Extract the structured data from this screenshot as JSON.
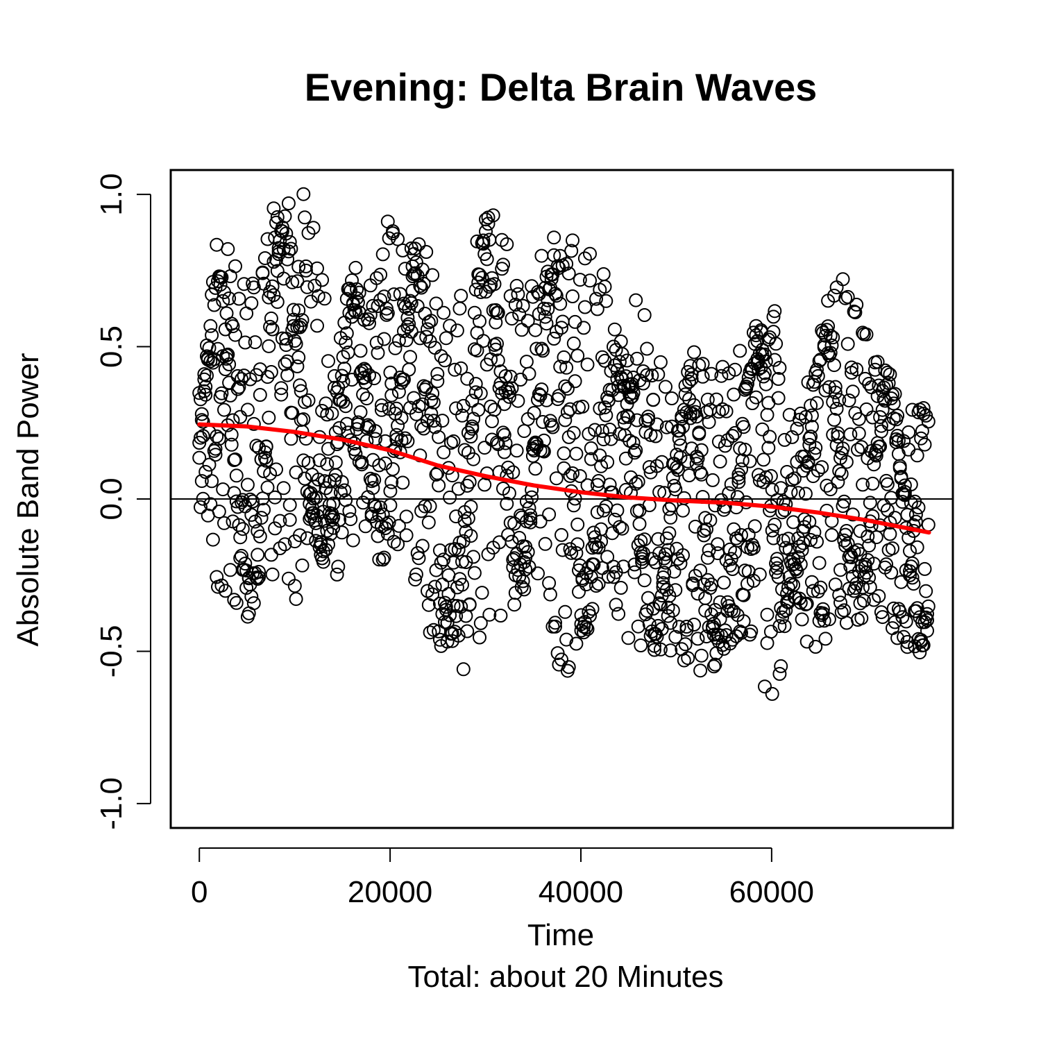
{
  "chart_data": {
    "type": "scatter",
    "title": "Evening: Delta Brain Waves",
    "xlabel": "Time",
    "subtitle": "Total: about 20 Minutes",
    "ylabel": "Absolute Band Power",
    "xlim": [
      -3000,
      79000
    ],
    "ylim": [
      -1.08,
      1.08
    ],
    "xticks": [
      0,
      20000,
      40000,
      60000
    ],
    "yticks": [
      -1.0,
      -0.5,
      0.0,
      0.5,
      1.0
    ],
    "xtick_labels": [
      "0",
      "20000",
      "40000",
      "60000"
    ],
    "ytick_labels": [
      "-1.0",
      "-0.5",
      "0.0",
      "0.5",
      "1.0"
    ],
    "hline": 0.0,
    "grid": false,
    "legend": "none",
    "point_style": "open-circle",
    "point_color": "#000000",
    "n_points": 76800,
    "series": [
      {
        "name": "",
        "kind": "points",
        "sampled_envelope": {
          "x": [
            0,
            2000,
            4000,
            6000,
            8000,
            10000,
            12000,
            14000,
            16000,
            18000,
            20000,
            22000,
            24000,
            26000,
            28000,
            30000,
            32000,
            34000,
            36000,
            38000,
            40000,
            42000,
            44000,
            46000,
            48000,
            50000,
            52000,
            54000,
            56000,
            58000,
            60000,
            62000,
            64000,
            66000,
            68000,
            70000,
            72000,
            74000,
            76500
          ],
          "ymin": [
            -0.1,
            -0.3,
            -0.35,
            -0.43,
            -0.25,
            -0.35,
            -0.12,
            -0.42,
            -0.15,
            -0.2,
            -0.22,
            -0.2,
            -0.45,
            -0.5,
            -0.6,
            -0.5,
            -0.4,
            -0.3,
            -0.3,
            -0.6,
            -0.5,
            -0.3,
            -0.45,
            -0.5,
            -0.5,
            -0.5,
            -0.6,
            -0.55,
            -0.5,
            -0.45,
            -0.82,
            -0.3,
            -0.5,
            -0.5,
            -0.4,
            -0.4,
            -0.4,
            -0.55,
            -0.48
          ],
          "ymax": [
            0.35,
            0.9,
            0.75,
            0.72,
            1.05,
            0.95,
            1.08,
            0.4,
            0.8,
            0.7,
            1.0,
            0.85,
            0.9,
            0.78,
            0.7,
            0.97,
            0.97,
            0.7,
            0.85,
            0.88,
            0.97,
            0.8,
            0.5,
            0.68,
            0.5,
            0.3,
            0.5,
            0.45,
            0.48,
            0.54,
            0.82,
            0.25,
            0.52,
            0.68,
            0.74,
            0.55,
            0.45,
            0.33,
            0.3
          ]
        }
      },
      {
        "name": "",
        "kind": "line",
        "color": "#ff0000",
        "x": [
          0,
          5000,
          10000,
          15000,
          20000,
          25000,
          30000,
          35000,
          40000,
          45000,
          50000,
          55000,
          60000,
          65000,
          70000,
          76500
        ],
        "y": [
          0.245,
          0.238,
          0.22,
          0.195,
          0.16,
          0.11,
          0.075,
          0.045,
          0.022,
          0.005,
          -0.005,
          -0.012,
          -0.025,
          -0.045,
          -0.07,
          -0.11
        ]
      }
    ]
  }
}
